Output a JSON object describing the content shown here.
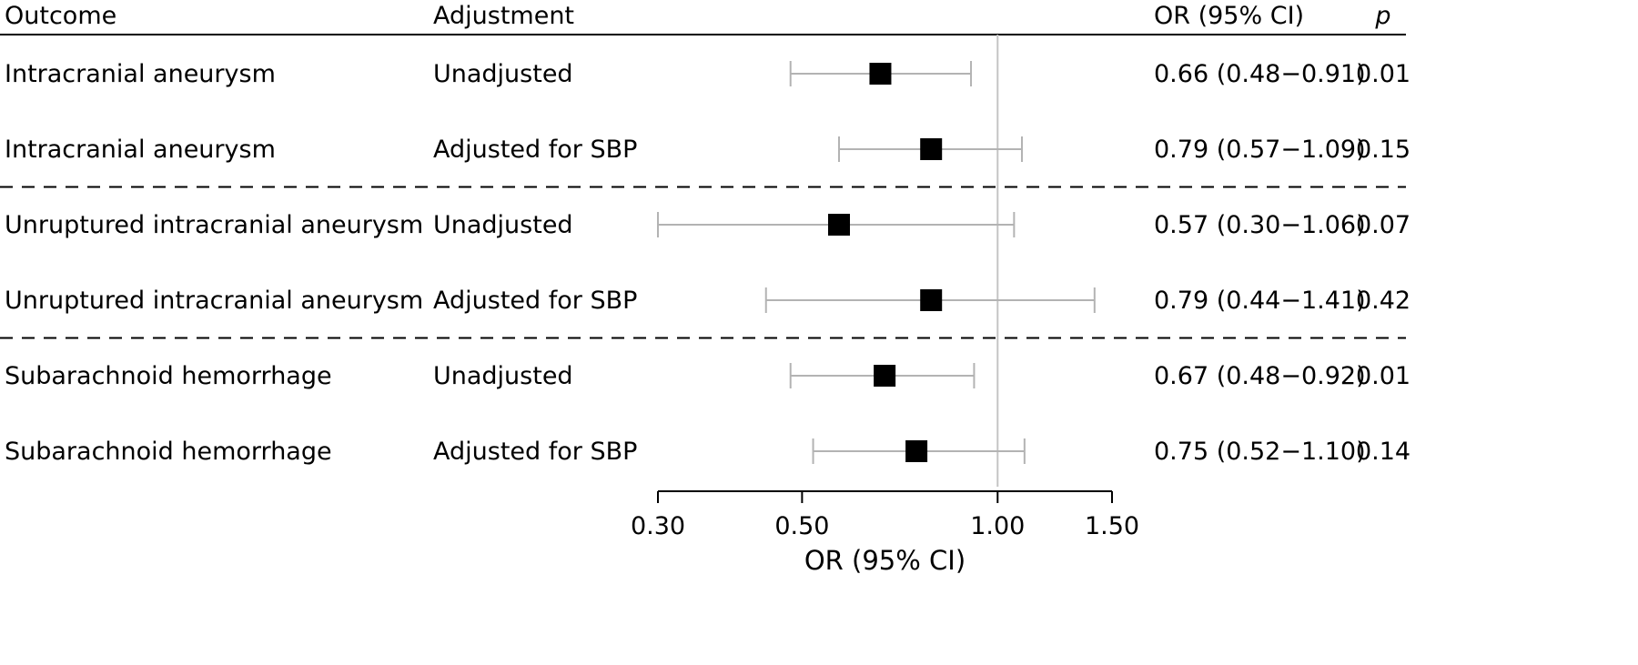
{
  "chart_data": {
    "type": "forest",
    "headers": {
      "outcome": "Outcome",
      "adjustment": "Adjustment",
      "or_ci": "OR (95% CI)",
      "p": "p"
    },
    "rows": [
      {
        "outcome": "Intracranial aneurysm",
        "adjustment": "Unadjusted",
        "or": 0.66,
        "lower": 0.48,
        "upper": 0.91,
        "or_ci_text": "0.66 (0.48−0.91)",
        "p": "0.01"
      },
      {
        "outcome": "Intracranial aneurysm",
        "adjustment": "Adjusted for SBP",
        "or": 0.79,
        "lower": 0.57,
        "upper": 1.09,
        "or_ci_text": "0.79 (0.57−1.09)",
        "p": "0.15"
      },
      {
        "outcome": "Unruptured intracranial aneurysm",
        "adjustment": "Unadjusted",
        "or": 0.57,
        "lower": 0.3,
        "upper": 1.06,
        "or_ci_text": "0.57 (0.30−1.06)",
        "p": "0.07"
      },
      {
        "outcome": "Unruptured intracranial aneurysm",
        "adjustment": "Adjusted for SBP",
        "or": 0.79,
        "lower": 0.44,
        "upper": 1.41,
        "or_ci_text": "0.79 (0.44−1.41)",
        "p": "0.42"
      },
      {
        "outcome": "Subarachnoid hemorrhage",
        "adjustment": "Unadjusted",
        "or": 0.67,
        "lower": 0.48,
        "upper": 0.92,
        "or_ci_text": "0.67 (0.48−0.92)",
        "p": "0.01"
      },
      {
        "outcome": "Subarachnoid hemorrhage",
        "adjustment": "Adjusted for SBP",
        "or": 0.75,
        "lower": 0.52,
        "upper": 1.1,
        "or_ci_text": "0.75 (0.52−1.10)",
        "p": "0.14"
      }
    ],
    "group_separators_after_rows": [
      2,
      4
    ],
    "x_axis": {
      "scale": "log",
      "label": "OR (95% CI)",
      "ticks": [
        0.3,
        0.5,
        1.0,
        1.5
      ],
      "tick_labels": [
        "0.30",
        "0.50",
        "1.00",
        "1.50"
      ],
      "xlim": [
        0.3,
        1.5
      ],
      "reference_line": 1.0
    },
    "colors": {
      "marker": "#000000",
      "ci_line": "#b3b3b3",
      "reference_line": "#c4c4c4",
      "text": "#000000"
    }
  }
}
